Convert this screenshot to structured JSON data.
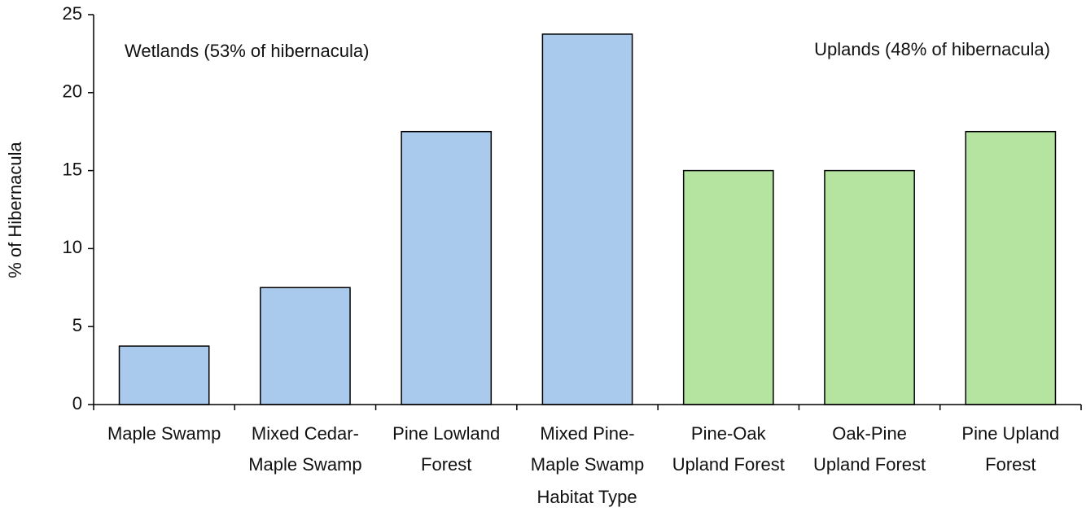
{
  "chart_data": {
    "type": "bar",
    "x_label": "Habitat Type",
    "y_label": "% of Hibernacula",
    "categories": [
      [
        "Maple Swamp"
      ],
      [
        "Mixed Cedar-",
        "Maple Swamp"
      ],
      [
        "Pine Lowland",
        "Forest"
      ],
      [
        "Mixed Pine-",
        "Maple Swamp"
      ],
      [
        "Pine-Oak",
        "Upland Forest"
      ],
      [
        "Oak-Pine",
        "Upland Forest"
      ],
      [
        "Pine Upland",
        "Forest"
      ]
    ],
    "values": [
      3.75,
      7.5,
      17.5,
      23.75,
      15,
      15,
      17.5
    ],
    "colors": [
      "#a9caec",
      "#a9caec",
      "#a9caec",
      "#a9caec",
      "#b5e4a0",
      "#b5e4a0",
      "#b5e4a0"
    ],
    "ylim": [
      0,
      25
    ],
    "yticks": [
      0,
      5,
      10,
      15,
      20,
      25
    ],
    "grid": false,
    "annotations": [
      "Wetlands (53% of hibernacula)",
      "Uplands (48% of hibernacula)"
    ]
  }
}
